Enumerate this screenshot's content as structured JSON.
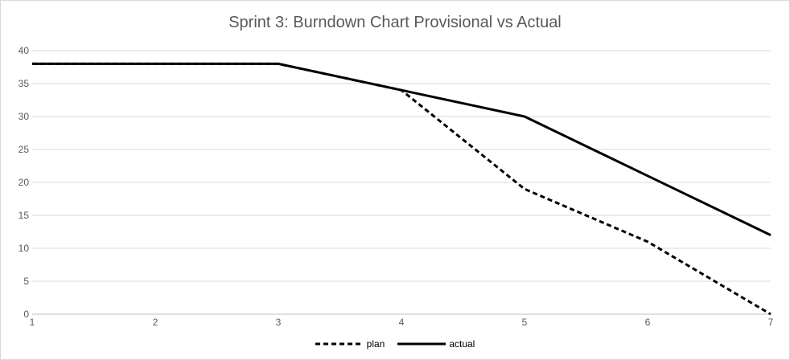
{
  "chart_data": {
    "type": "line",
    "title": "Sprint 3: Burndown Chart Provisional vs Actual",
    "xlabel": "",
    "ylabel": "",
    "x": [
      1,
      2,
      3,
      4,
      5,
      6,
      7
    ],
    "xlim": [
      1,
      7
    ],
    "ylim": [
      0,
      40
    ],
    "y_ticks": [
      "0",
      "5",
      "10",
      "15",
      "20",
      "25",
      "30",
      "35",
      "40"
    ],
    "x_ticks": [
      "1",
      "2",
      "3",
      "4",
      "5",
      "6",
      "7"
    ],
    "grid": "horizontal",
    "legend_position": "bottom",
    "series": [
      {
        "name": "plan",
        "values": [
          38,
          38,
          38,
          34,
          19,
          11,
          0
        ],
        "color": "#000000",
        "style": "dashed"
      },
      {
        "name": "actual",
        "values": [
          38,
          38,
          38,
          34,
          30,
          21,
          12
        ],
        "color": "#000000",
        "style": "solid"
      }
    ]
  }
}
